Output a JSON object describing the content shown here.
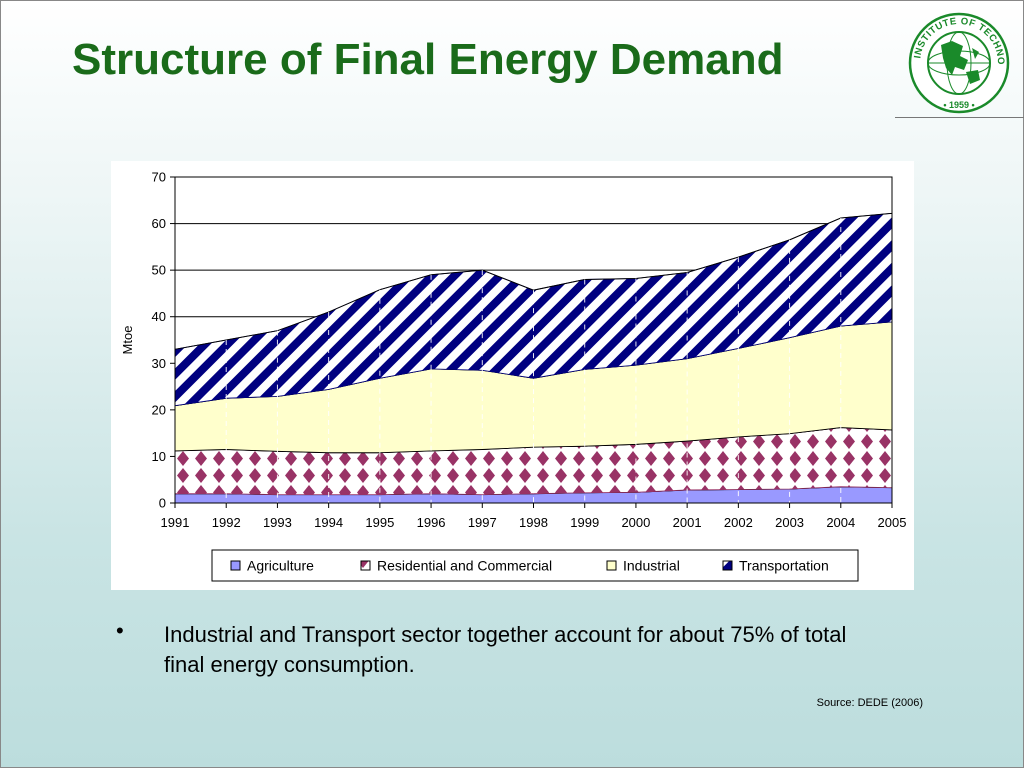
{
  "slide": {
    "title": "Structure of Final Energy Demand",
    "bullet": "Industrial and Transport sector together account for about 75% of total final energy consumption.",
    "source": "Source: DEDE (2006)",
    "title_color": "#1a6b1a"
  },
  "logo": {
    "text": "ASIAN INSTITUTE OF TECHNOLOGY",
    "year": "• 1959 •",
    "color": "#1a8a2a"
  },
  "chart_data": {
    "type": "area",
    "stacked": true,
    "x": [
      "1991",
      "1992",
      "1993",
      "1994",
      "1995",
      "1996",
      "1997",
      "1998",
      "1999",
      "2000",
      "2001",
      "2002",
      "2003",
      "2004",
      "2005"
    ],
    "series": [
      {
        "name": "Agriculture",
        "values": [
          2.0,
          2.0,
          1.8,
          1.8,
          1.8,
          2.0,
          1.8,
          2.0,
          2.2,
          2.3,
          2.8,
          2.9,
          3.0,
          3.5,
          3.3
        ],
        "color": "#9999ff",
        "pattern": "solid"
      },
      {
        "name": "Residential and Commercial",
        "values": [
          9.2,
          9.5,
          9.3,
          9.0,
          9.0,
          9.2,
          9.7,
          10.0,
          10.0,
          10.3,
          10.5,
          11.3,
          11.9,
          12.7,
          12.4
        ],
        "color": "#993366",
        "pattern": "diamond"
      },
      {
        "name": "Industrial",
        "values": [
          9.7,
          11.0,
          11.8,
          13.6,
          16.0,
          17.6,
          17.0,
          14.8,
          16.5,
          17.0,
          17.7,
          19.0,
          20.6,
          21.8,
          23.2
        ],
        "color": "#ffffcc",
        "pattern": "solid"
      },
      {
        "name": "Transportation",
        "values": [
          12.1,
          12.5,
          14.1,
          16.6,
          19.0,
          20.2,
          21.5,
          18.9,
          19.3,
          18.6,
          18.5,
          19.6,
          21.0,
          23.2,
          23.3
        ],
        "color": "#000080",
        "pattern": "diagonal"
      }
    ],
    "ylabel": "Mtoe",
    "xlabel": "",
    "ylim": [
      0,
      70
    ],
    "yticks": [
      0,
      10,
      20,
      30,
      40,
      50,
      60,
      70
    ],
    "grid": "horizontal",
    "legend": "bottom"
  }
}
